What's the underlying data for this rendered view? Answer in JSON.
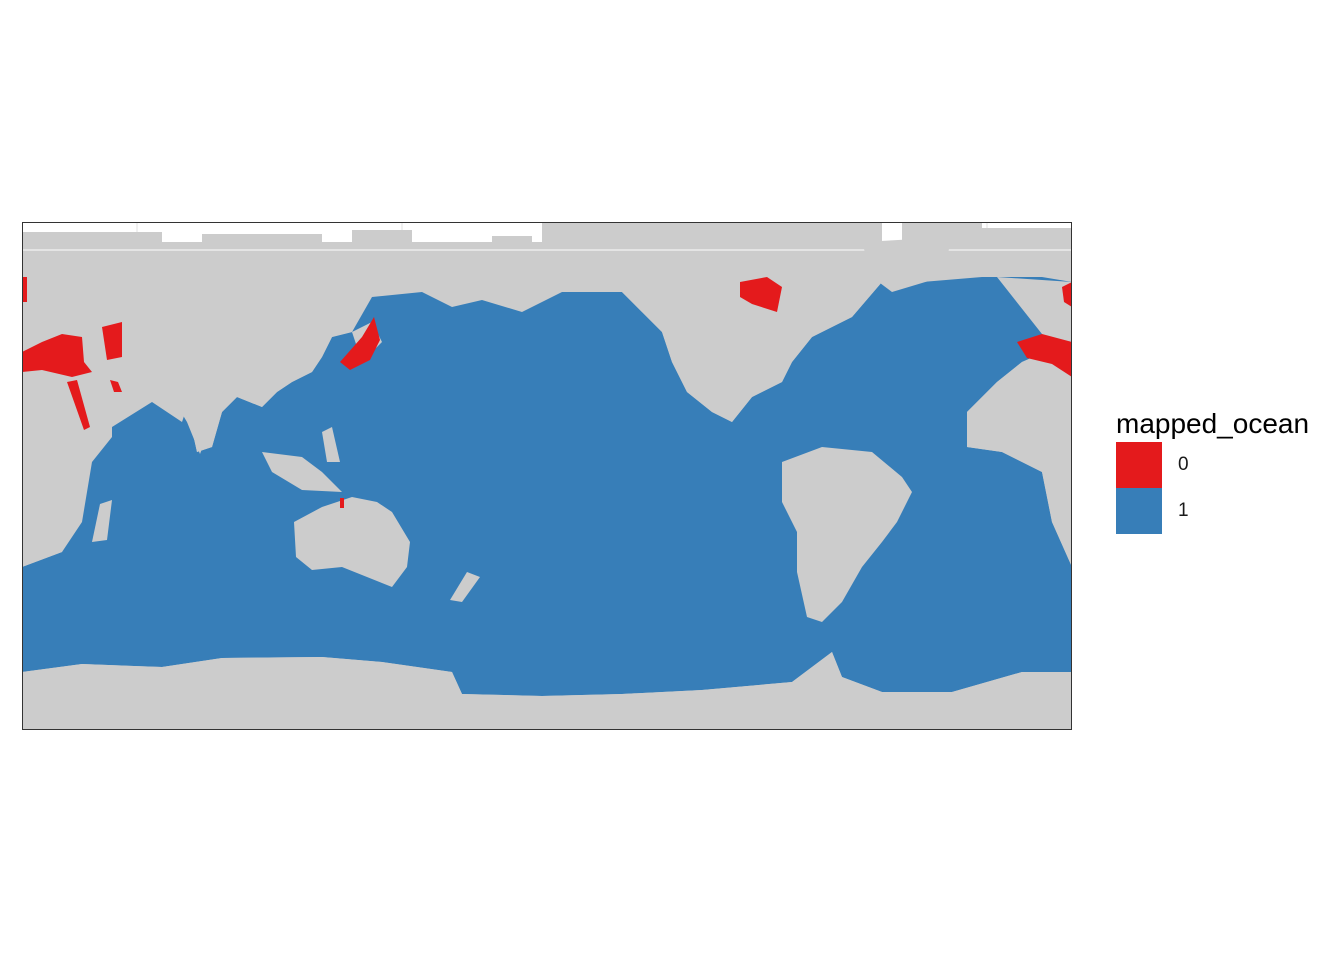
{
  "chart_data": {
    "type": "heatmap",
    "title": "",
    "xlabel": "",
    "ylabel": "",
    "projection": "equirectangular, Pacific-centered",
    "fill_variable": "mapped_ocean",
    "categories": [
      "0",
      "1"
    ],
    "land_color": "#cccccc",
    "colors": {
      "0": "#e41a1c",
      "1": "#377eb8"
    },
    "regions_by_value": {
      "0": [
        "Mediterranean Sea",
        "Black Sea",
        "Caspian Sea",
        "Red Sea",
        "Persian Gulf",
        "Sea of Japan",
        "Hudson Bay",
        "Baltic Sea"
      ],
      "1": [
        "Pacific Ocean",
        "Atlantic Ocean",
        "Indian Ocean",
        "Southern Ocean"
      ]
    }
  },
  "legend": {
    "title": "mapped_ocean",
    "items": [
      {
        "label": "0",
        "color": "#e41a1c"
      },
      {
        "label": "1",
        "color": "#377eb8"
      }
    ]
  }
}
